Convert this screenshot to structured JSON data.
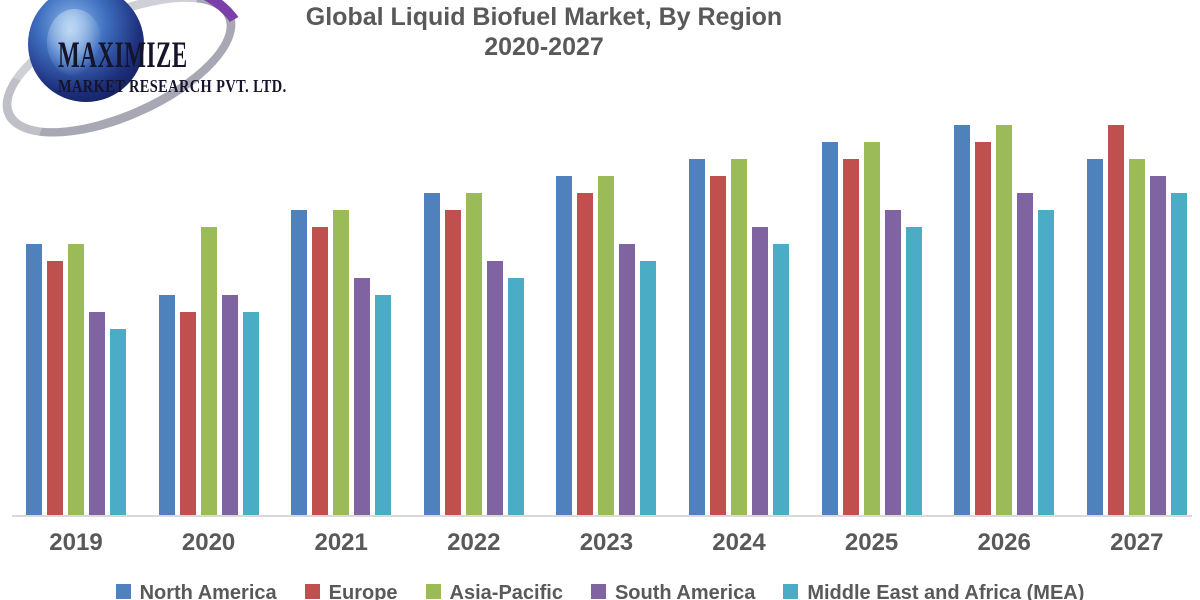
{
  "logo": {
    "name": "MAXIMIZE",
    "subtitle": "MARKET RESEARCH PVT. LTD."
  },
  "title": {
    "line1": "Global Liquid Biofuel Market, By Region",
    "line2": "2020-2027"
  },
  "chart_data": {
    "type": "bar",
    "title": "Global Liquid Biofuel Market, By Region 2020-2027",
    "categories": [
      "2019",
      "2020",
      "2021",
      "2022",
      "2023",
      "2024",
      "2025",
      "2026",
      "2027"
    ],
    "series": [
      {
        "name": "North America",
        "color": "#4F81BD",
        "values": [
          16,
          13,
          18,
          19,
          20,
          21,
          22,
          23,
          21
        ]
      },
      {
        "name": "Europe",
        "color": "#C0504D",
        "values": [
          15,
          12,
          17,
          18,
          19,
          20,
          21,
          22,
          23
        ]
      },
      {
        "name": "Asia-Pacific",
        "color": "#9BBB59",
        "values": [
          16,
          17,
          18,
          19,
          20,
          21,
          22,
          23,
          21
        ]
      },
      {
        "name": "South America",
        "color": "#8064A2",
        "values": [
          12,
          13,
          14,
          15,
          16,
          17,
          18,
          19,
          20
        ]
      },
      {
        "name": "Middle East and Africa (MEA)",
        "color": "#4BACC6",
        "values": [
          11,
          12,
          13,
          14,
          15,
          16,
          17,
          18,
          19
        ]
      }
    ],
    "xlabel": "",
    "ylabel": "",
    "value_axis_visible": false,
    "value_unit": "relative market size (no y-axis shown, arbitrary units)",
    "grid": false,
    "legend_position": "bottom",
    "colors": {
      "title_text": "#595959",
      "axis_labels": "#595959",
      "axis_line": "#D9D9D9",
      "background": "#FFFFFF"
    }
  }
}
